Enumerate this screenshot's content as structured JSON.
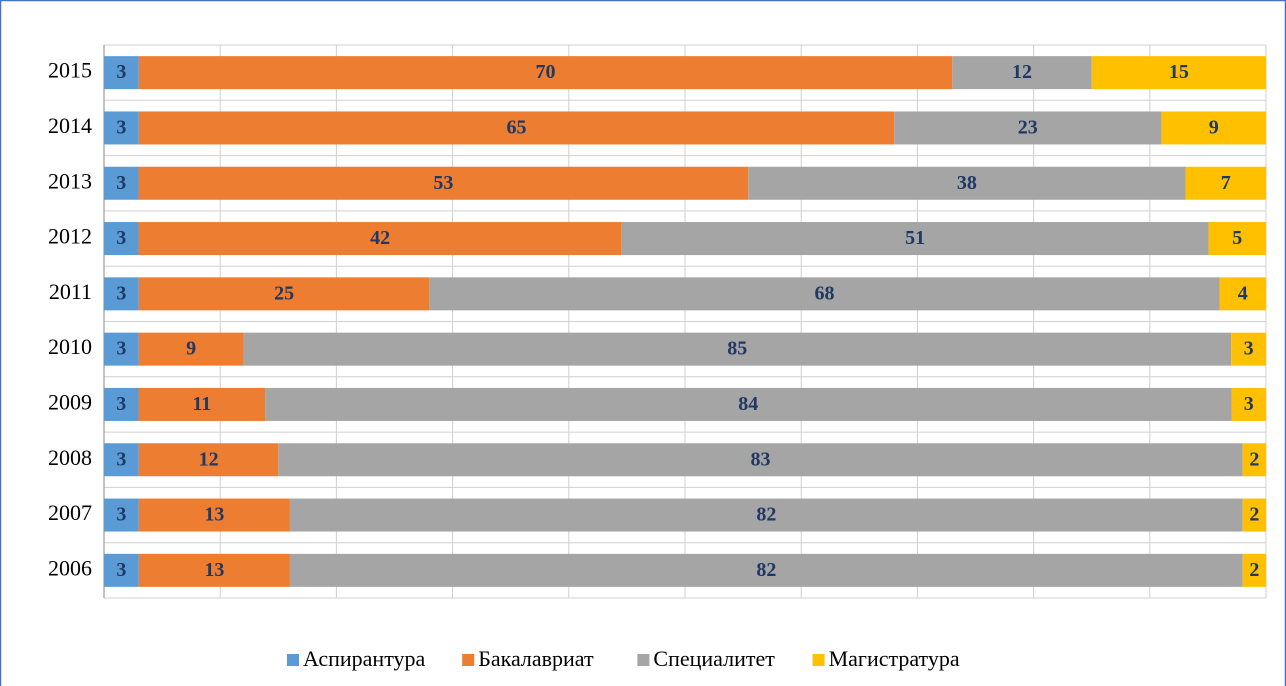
{
  "chart_data": {
    "type": "bar",
    "orientation": "horizontal",
    "stack": "percent",
    "grid": true,
    "legend": "bottom",
    "categories": [
      "2015",
      "2014",
      "2013",
      "2012",
      "2011",
      "2010",
      "2009",
      "2008",
      "2007",
      "2006"
    ],
    "series": [
      {
        "name": "Аспирантура",
        "color": "#5b9bd5",
        "values": [
          3,
          3,
          3,
          3,
          3,
          3,
          3,
          3,
          3,
          3
        ]
      },
      {
        "name": "Бакалавриат",
        "color": "#ed7d31",
        "values": [
          70,
          65,
          53,
          42,
          25,
          9,
          11,
          12,
          13,
          13
        ]
      },
      {
        "name": "Специалитет",
        "color": "#a5a5a5",
        "values": [
          12,
          23,
          38,
          51,
          68,
          85,
          84,
          83,
          82,
          82
        ]
      },
      {
        "name": "Магистратура",
        "color": "#ffc000",
        "values": [
          15,
          9,
          7,
          5,
          4,
          3,
          3,
          2,
          2,
          2
        ]
      }
    ]
  }
}
